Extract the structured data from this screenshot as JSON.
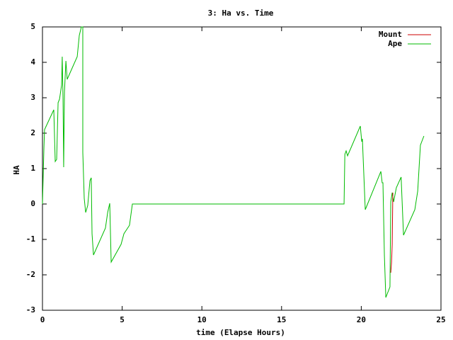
{
  "chart_data": {
    "type": "line",
    "title": "3: Ha vs. Time",
    "xlabel": "time (Elapse Hours)",
    "ylabel": "HA",
    "xlim": [
      0,
      25
    ],
    "xticks": [
      0,
      5,
      10,
      15,
      20,
      25
    ],
    "ylim": [
      -3,
      5
    ],
    "yticks": [
      -3,
      -2,
      -1,
      0,
      1,
      2,
      3,
      4,
      5
    ],
    "legend": "top-right",
    "series": [
      {
        "name": "Mount",
        "color": "#cc0000",
        "x": [
          21.85,
          21.9,
          21.94,
          21.98
        ],
        "values": [
          -1.94,
          -1.64,
          -1.14,
          0.32
        ]
      },
      {
        "name": "Ape",
        "color": "#00bb00",
        "x": [
          0,
          0.09,
          0.13,
          0.71,
          0.8,
          0.89,
          0.98,
          1.07,
          1.2,
          1.24,
          1.29,
          1.33,
          1.38,
          1.47,
          1.55,
          2.18,
          2.31,
          2.44,
          2.53,
          2.53,
          2.62,
          2.71,
          2.84,
          2.98,
          3.06,
          3.11,
          3.2,
          3.95,
          4.09,
          4.22,
          4.31,
          4.93,
          5.11,
          5.46,
          5.64,
          18.92,
          18.97,
          19.05,
          19.14,
          19.94,
          20.03,
          20.07,
          20.25,
          21.23,
          21.31,
          21.36,
          21.45,
          21.54,
          21.8,
          21.85,
          21.94,
          22.03,
          22.2,
          22.5,
          22.65,
          23.36,
          23.54,
          23.71,
          23.93
        ],
        "values": [
          0,
          1.56,
          2.1,
          2.66,
          1.2,
          1.26,
          2.86,
          2.96,
          3.36,
          4.16,
          2.96,
          1.04,
          3.16,
          4.04,
          3.52,
          4.16,
          4.76,
          5,
          5,
          1.46,
          0.16,
          -0.24,
          -0.04,
          0.66,
          0.74,
          -0.84,
          -1.44,
          -0.68,
          -0.24,
          0.02,
          -1.64,
          -1.14,
          -0.84,
          -0.6,
          0,
          0,
          1.4,
          1.5,
          1.36,
          2.2,
          1.76,
          1.84,
          -0.16,
          0.92,
          0.6,
          0.6,
          -1.44,
          -2.64,
          -2.34,
          0.06,
          0.32,
          0.06,
          0.46,
          0.76,
          -0.88,
          -0.16,
          0.36,
          1.66,
          1.92
        ]
      }
    ]
  }
}
